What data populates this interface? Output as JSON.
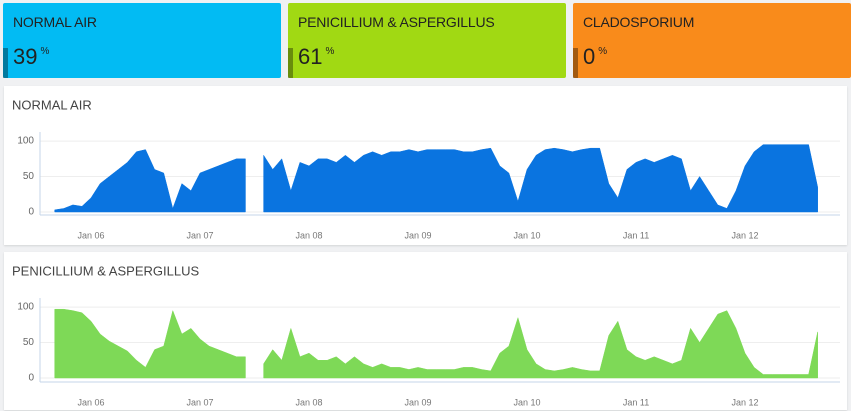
{
  "cards": [
    {
      "label": "NORMAL AIR",
      "value": 39,
      "unit": "%",
      "color": "#02bbf3"
    },
    {
      "label": "PENICILLIUM & ASPERGILLUS",
      "value": 61,
      "unit": "%",
      "color": "#a1d913"
    },
    {
      "label": "CLADOSPORIUM",
      "value": 0,
      "unit": "%",
      "color": "#f98b1b"
    }
  ],
  "chart_data": [
    {
      "type": "area",
      "title": "NORMAL AIR",
      "color": "#0a74e0",
      "ylim": [
        0,
        110
      ],
      "yticks": [
        0,
        50,
        100
      ],
      "grid": true,
      "categories": [
        null,
        null,
        null,
        null,
        "Jan 06",
        null,
        null,
        null,
        null,
        null,
        null,
        null,
        null,
        null,
        null,
        null,
        "Jan 07",
        null,
        null,
        null,
        null,
        null,
        null,
        null,
        null,
        null,
        null,
        null,
        "Jan 08",
        null,
        null,
        null,
        null,
        null,
        null,
        null,
        null,
        null,
        null,
        null,
        "Jan 09",
        null,
        null,
        null,
        null,
        null,
        null,
        null,
        null,
        null,
        null,
        null,
        "Jan 10",
        null,
        null,
        null,
        null,
        null,
        null,
        null,
        null,
        null,
        null,
        null,
        "Jan 11",
        null,
        null,
        null,
        null,
        null,
        null,
        null,
        null,
        null,
        null,
        null,
        "Jan 12",
        null,
        null,
        null,
        null,
        null,
        null,
        null,
        null
      ],
      "values": [
        3,
        5,
        10,
        8,
        20,
        40,
        50,
        60,
        70,
        85,
        88,
        60,
        55,
        5,
        40,
        30,
        55,
        60,
        65,
        70,
        75,
        75,
        null,
        80,
        60,
        75,
        30,
        70,
        65,
        75,
        75,
        70,
        80,
        70,
        80,
        85,
        80,
        85,
        85,
        88,
        85,
        88,
        88,
        88,
        88,
        85,
        85,
        88,
        90,
        65,
        55,
        15,
        60,
        80,
        88,
        90,
        88,
        85,
        88,
        90,
        90,
        40,
        20,
        60,
        70,
        75,
        70,
        75,
        80,
        75,
        30,
        50,
        30,
        10,
        5,
        30,
        65,
        85,
        95,
        95,
        95,
        95,
        95,
        95,
        35
      ]
    },
    {
      "type": "area",
      "title": "PENICILLIUM & ASPERGILLUS",
      "color": "#7ed957",
      "ylim": [
        0,
        110
      ],
      "yticks": [
        0,
        50,
        100
      ],
      "grid": true,
      "categories": [
        null,
        null,
        null,
        null,
        "Jan 06",
        null,
        null,
        null,
        null,
        null,
        null,
        null,
        null,
        null,
        null,
        null,
        "Jan 07",
        null,
        null,
        null,
        null,
        null,
        null,
        null,
        null,
        null,
        null,
        null,
        "Jan 08",
        null,
        null,
        null,
        null,
        null,
        null,
        null,
        null,
        null,
        null,
        null,
        "Jan 09",
        null,
        null,
        null,
        null,
        null,
        null,
        null,
        null,
        null,
        null,
        null,
        "Jan 10",
        null,
        null,
        null,
        null,
        null,
        null,
        null,
        null,
        null,
        null,
        null,
        "Jan 11",
        null,
        null,
        null,
        null,
        null,
        null,
        null,
        null,
        null,
        null,
        null,
        "Jan 12",
        null,
        null,
        null,
        null,
        null,
        null,
        null,
        null
      ],
      "values": [
        97,
        97,
        95,
        92,
        80,
        62,
        52,
        45,
        38,
        25,
        15,
        40,
        45,
        95,
        62,
        70,
        55,
        45,
        40,
        35,
        30,
        30,
        null,
        20,
        40,
        25,
        70,
        30,
        35,
        25,
        25,
        30,
        20,
        30,
        20,
        15,
        20,
        15,
        15,
        12,
        15,
        12,
        12,
        12,
        12,
        15,
        15,
        12,
        10,
        35,
        45,
        85,
        40,
        20,
        12,
        10,
        12,
        15,
        12,
        10,
        10,
        60,
        80,
        40,
        30,
        25,
        30,
        25,
        20,
        25,
        70,
        50,
        70,
        90,
        95,
        70,
        35,
        15,
        5,
        5,
        5,
        5,
        5,
        5,
        65
      ]
    }
  ]
}
